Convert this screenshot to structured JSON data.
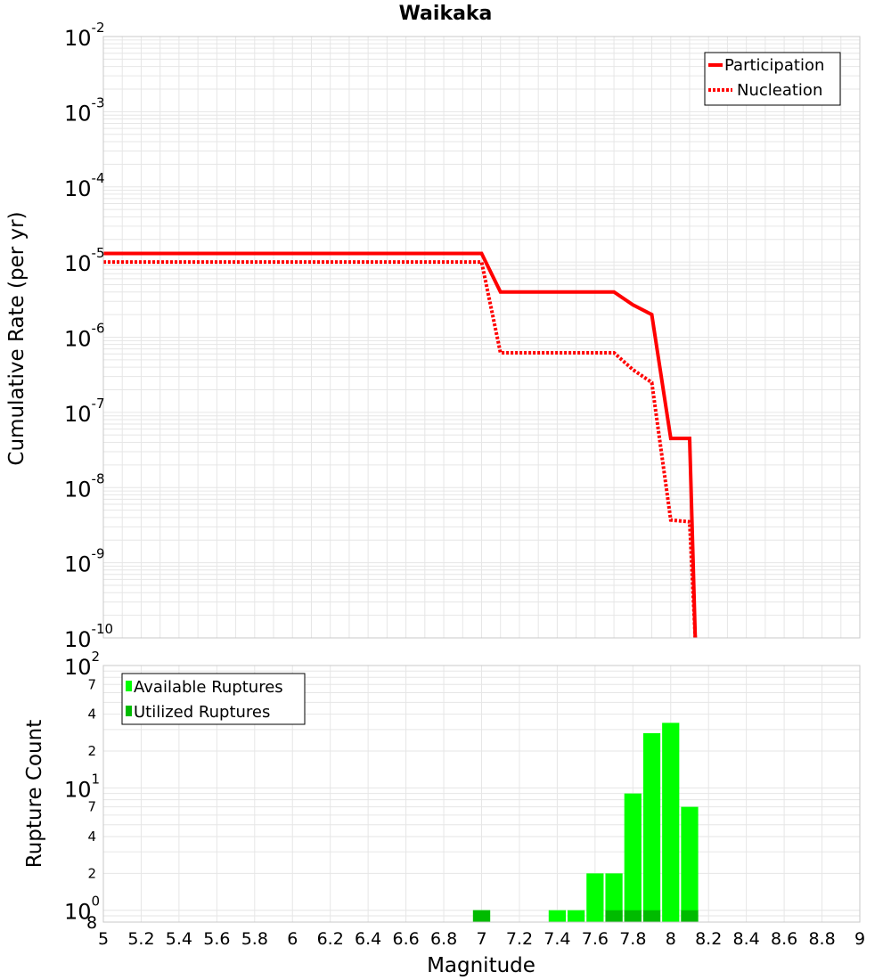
{
  "title": "Waikaka",
  "colors": {
    "participation": "#ff0000",
    "nucleation": "#ff0000",
    "available": "#00ff00",
    "utilized": "#00bb00",
    "grid": "#e6e6e6",
    "frame": "#c8c8c8"
  },
  "chart_data": [
    {
      "type": "line",
      "title": "Waikaka",
      "xlabel": "Magnitude",
      "ylabel": "Cumulative Rate (per yr)",
      "yscale": "log",
      "xlim": [
        5,
        9
      ],
      "ylim": [
        1e-10,
        0.01
      ],
      "ytick_base": "10",
      "ytick_exponents": [
        "-10",
        "-9",
        "-8",
        "-7",
        "-6",
        "-5",
        "-4",
        "-3",
        "-2"
      ],
      "legend": {
        "placement": "top-right",
        "entries": [
          "Participation",
          "Nucleation"
        ]
      },
      "series": [
        {
          "name": "Participation",
          "style": "solid",
          "x": [
            5.0,
            7.0,
            7.1,
            7.7,
            7.8,
            7.9,
            8.0,
            8.1,
            8.13
          ],
          "y": [
            1.3e-05,
            1.3e-05,
            4e-06,
            4e-06,
            2.7e-06,
            2e-06,
            4.5e-08,
            4.5e-08,
            1e-10
          ]
        },
        {
          "name": "Nucleation",
          "style": "dotted",
          "x": [
            5.0,
            7.0,
            7.1,
            7.7,
            7.8,
            7.9,
            8.0,
            8.1,
            8.13
          ],
          "y": [
            1e-05,
            1e-05,
            6.2e-07,
            6.2e-07,
            3.7e-07,
            2.5e-07,
            3.7e-09,
            3.5e-09,
            1e-10
          ]
        }
      ]
    },
    {
      "type": "bar",
      "xlabel": "Magnitude",
      "ylabel": "Rupture Count",
      "yscale": "log",
      "xlim": [
        5,
        9
      ],
      "ylim": [
        0.8,
        100
      ],
      "ymin_label": "8",
      "x_ticks": [
        "5",
        "5.2",
        "5.4",
        "5.6",
        "5.8",
        "6",
        "6.2",
        "6.4",
        "6.6",
        "6.8",
        "7",
        "7.2",
        "7.4",
        "7.6",
        "7.8",
        "8",
        "8.2",
        "8.4",
        "8.6",
        "8.8",
        "9"
      ],
      "ytick_base": "10",
      "ytick_exponents": [
        "0",
        "1",
        "2"
      ],
      "minor_tick_labels": [
        "2",
        "4",
        "7"
      ],
      "legend": {
        "placement": "top-left",
        "entries": [
          "Available Ruptures",
          "Utilized Ruptures"
        ]
      },
      "bar_width": 0.1,
      "series": [
        {
          "name": "Available Ruptures",
          "x": [
            7.0,
            7.4,
            7.5,
            7.6,
            7.7,
            7.8,
            7.9,
            8.0,
            8.1
          ],
          "values": [
            1,
            1,
            1,
            2,
            2,
            9,
            28,
            34,
            7
          ]
        },
        {
          "name": "Utilized Ruptures",
          "x": [
            7.0,
            7.7,
            7.8,
            7.9,
            8.1
          ],
          "values": [
            1,
            1,
            1,
            1,
            1
          ]
        }
      ]
    }
  ]
}
